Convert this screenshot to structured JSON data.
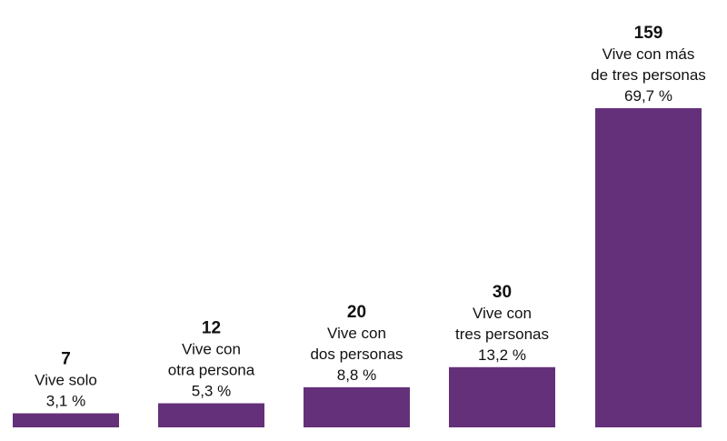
{
  "colors": {
    "bar": "#65307a",
    "text": "#111111",
    "background": "#ffffff"
  },
  "chart_data": {
    "type": "bar",
    "categories": [
      "Vive solo",
      "Vive con otra persona",
      "Vive con dos personas",
      "Vive con tres personas",
      "Vive con más de tres personas"
    ],
    "values": [
      7,
      12,
      20,
      30,
      159
    ],
    "bars": [
      {
        "value": "7",
        "label_lines": [
          "Vive solo"
        ],
        "percent": "3,1 %"
      },
      {
        "value": "12",
        "label_lines": [
          "Vive con",
          "otra persona"
        ],
        "percent": "5,3 %"
      },
      {
        "value": "20",
        "label_lines": [
          "Vive con",
          "dos personas"
        ],
        "percent": "8,8 %"
      },
      {
        "value": "30",
        "label_lines": [
          "Vive con",
          "tres personas"
        ],
        "percent": "13,2 %"
      },
      {
        "value": "159",
        "label_lines": [
          "Vive con más",
          "de tres personas"
        ],
        "percent": "69,7 %"
      }
    ],
    "percentages": [
      3.1,
      5.3,
      8.8,
      13.2,
      69.7
    ],
    "title": "",
    "xlabel": "",
    "ylabel": "",
    "ylim": [
      0,
      159
    ],
    "grid": false,
    "legend": "none"
  }
}
